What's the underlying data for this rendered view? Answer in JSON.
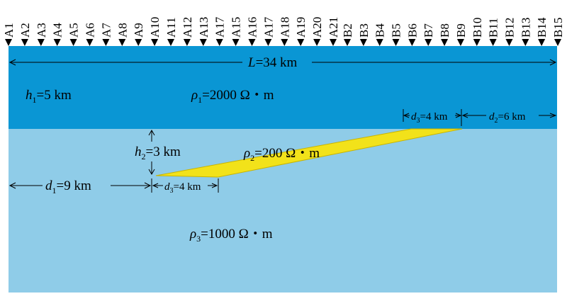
{
  "stations_a": [
    "A1",
    "A2",
    "A3",
    "A4",
    "A5",
    "A6",
    "A7",
    "A8",
    "A9",
    "A10",
    "A11",
    "A12",
    "A13",
    "A17",
    "A15",
    "A16",
    "A17",
    "A18",
    "A19",
    "A20",
    "A21"
  ],
  "stations_b": [
    "B2",
    "B3",
    "B4",
    "B5",
    "B6",
    "B7",
    "B8",
    "B9",
    "B10",
    "B11",
    "B12",
    "B13",
    "B14",
    "B15"
  ],
  "labels": {
    "length_sym": "L",
    "length_val": "=34 km",
    "h1_sym": "h",
    "h1_sub": "1",
    "h1_val": "=5 km",
    "h2_sym": "h",
    "h2_sub": "2",
    "h2_val": "=3 km",
    "rho1_sym": "ρ",
    "rho1_sub": "1",
    "rho1_val": "=2000 Ω・m",
    "rho2_sym": "ρ",
    "rho2_sub": "2",
    "rho2_val": "=200 Ω・m",
    "rho3_sym": "ρ",
    "rho3_sub": "3",
    "rho3_val": "=1000 Ω・m",
    "d1_sym": "d",
    "d1_sub": "1",
    "d1_val": "=9 km",
    "d2_sym": "d",
    "d2_sub": "2",
    "d2_val": "=6 km",
    "d3_sym": "d",
    "d3_sub": "3",
    "d3_val": "=4 km",
    "d3b_sym": "d",
    "d3b_sub": "3",
    "d3b_val": "=4 km"
  },
  "colors": {
    "layer1": "#0a96d4",
    "layer2": "#8fcce8",
    "body": "#f2e21a",
    "body_edge": "#c9b400",
    "line": "#000000"
  }
}
